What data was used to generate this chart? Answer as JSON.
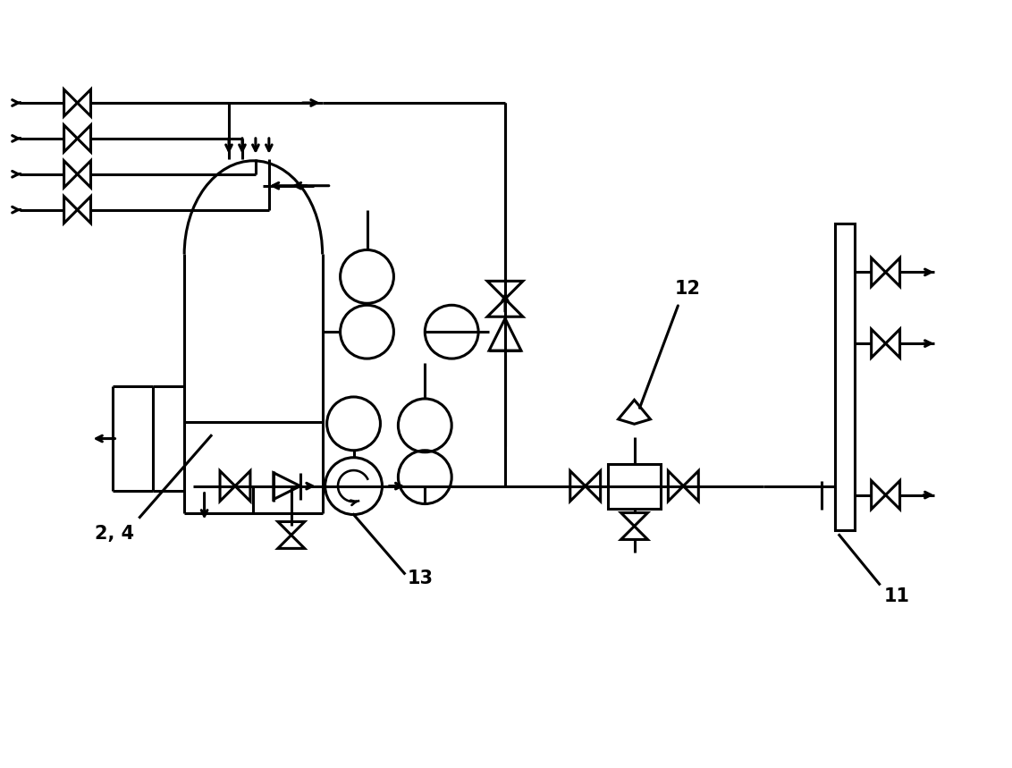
{
  "bg_color": "#ffffff",
  "lc": "#000000",
  "lw": 2.2,
  "fig_w": 11.32,
  "fig_h": 8.59,
  "xlim": [
    0,
    11.32
  ],
  "ylim": [
    0,
    8.59
  ],
  "label_24": [
    1.05,
    2.55,
    "2, 4"
  ],
  "label_13": [
    4.55,
    2.05,
    "13"
  ],
  "label_12": [
    7.55,
    5.3,
    "12"
  ],
  "label_11": [
    9.9,
    1.85,
    "11"
  ]
}
